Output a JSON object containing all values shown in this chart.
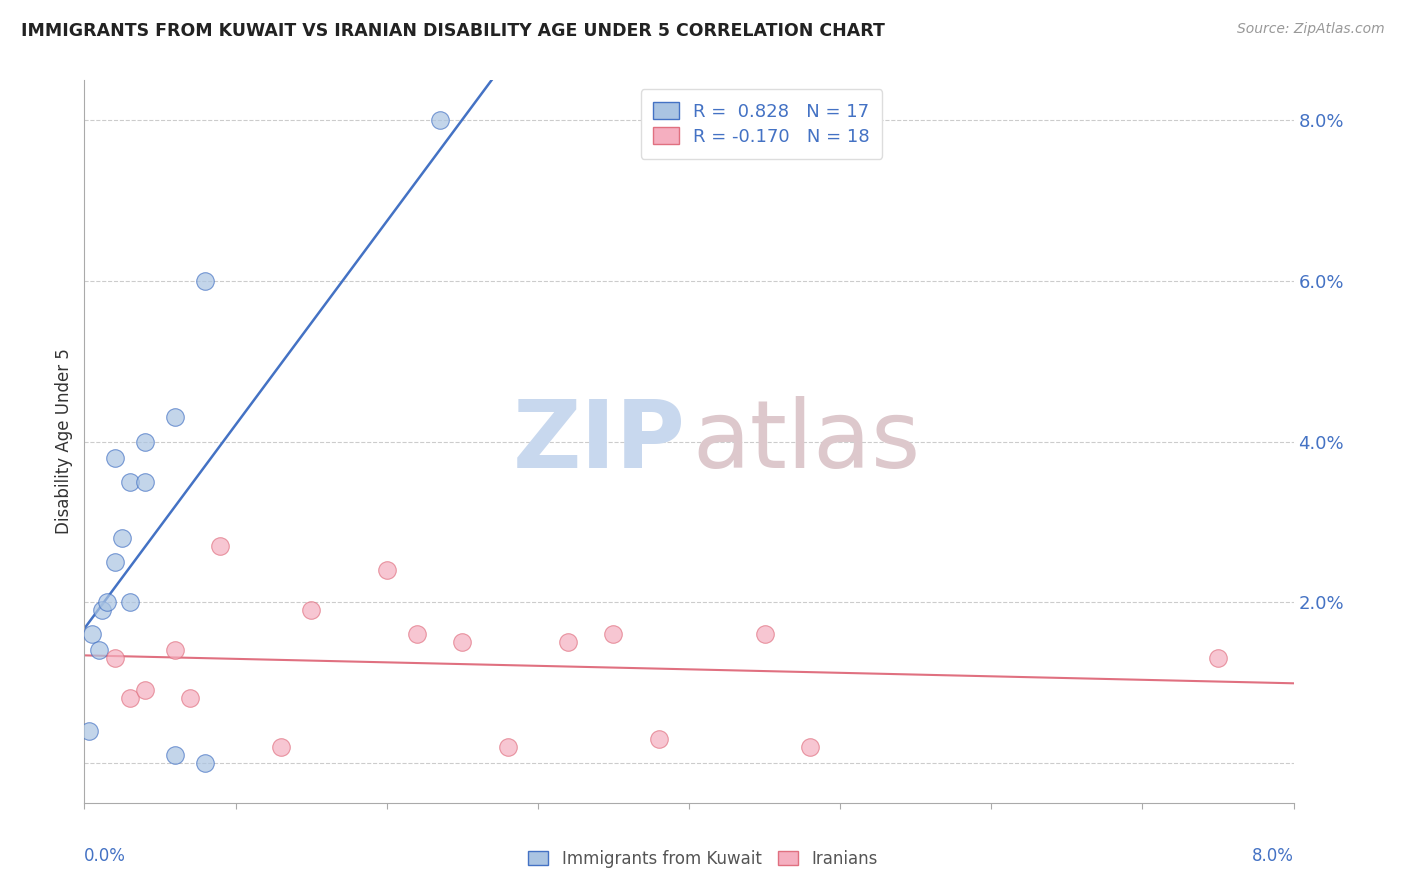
{
  "title": "IMMIGRANTS FROM KUWAIT VS IRANIAN DISABILITY AGE UNDER 5 CORRELATION CHART",
  "source": "Source: ZipAtlas.com",
  "ylabel": "Disability Age Under 5",
  "legend_label1": "Immigrants from Kuwait",
  "legend_label2": "Iranians",
  "r1": " 0.828",
  "n1": "17",
  "r2": "-0.170",
  "n2": "18",
  "xlim": [
    0.0,
    0.08
  ],
  "ylim": [
    -0.005,
    0.085
  ],
  "yticks": [
    0.0,
    0.02,
    0.04,
    0.06,
    0.08
  ],
  "ytick_labels": [
    "",
    "2.0%",
    "4.0%",
    "6.0%",
    "8.0%"
  ],
  "color_kuwait": "#aac4e2",
  "color_iran": "#f5afc0",
  "color_line_kuwait": "#4472c4",
  "color_line_iran": "#e07080",
  "watermark_zip_color": "#c8d8ee",
  "watermark_atlas_color": "#ddc8cc",
  "kuwait_x": [
    0.0003,
    0.0005,
    0.001,
    0.0012,
    0.0015,
    0.002,
    0.002,
    0.0025,
    0.003,
    0.003,
    0.004,
    0.004,
    0.006,
    0.006,
    0.008,
    0.008,
    0.0235
  ],
  "kuwait_y": [
    0.004,
    0.016,
    0.014,
    0.019,
    0.02,
    0.038,
    0.025,
    0.028,
    0.035,
    0.02,
    0.04,
    0.035,
    0.043,
    0.001,
    0.0,
    0.06,
    0.08
  ],
  "iran_x": [
    0.002,
    0.003,
    0.004,
    0.006,
    0.007,
    0.009,
    0.013,
    0.015,
    0.02,
    0.022,
    0.025,
    0.028,
    0.032,
    0.035,
    0.038,
    0.045,
    0.048,
    0.075
  ],
  "iran_y": [
    0.013,
    0.008,
    0.009,
    0.014,
    0.008,
    0.027,
    0.002,
    0.019,
    0.024,
    0.016,
    0.015,
    0.002,
    0.015,
    0.016,
    0.003,
    0.016,
    0.002,
    0.013
  ]
}
